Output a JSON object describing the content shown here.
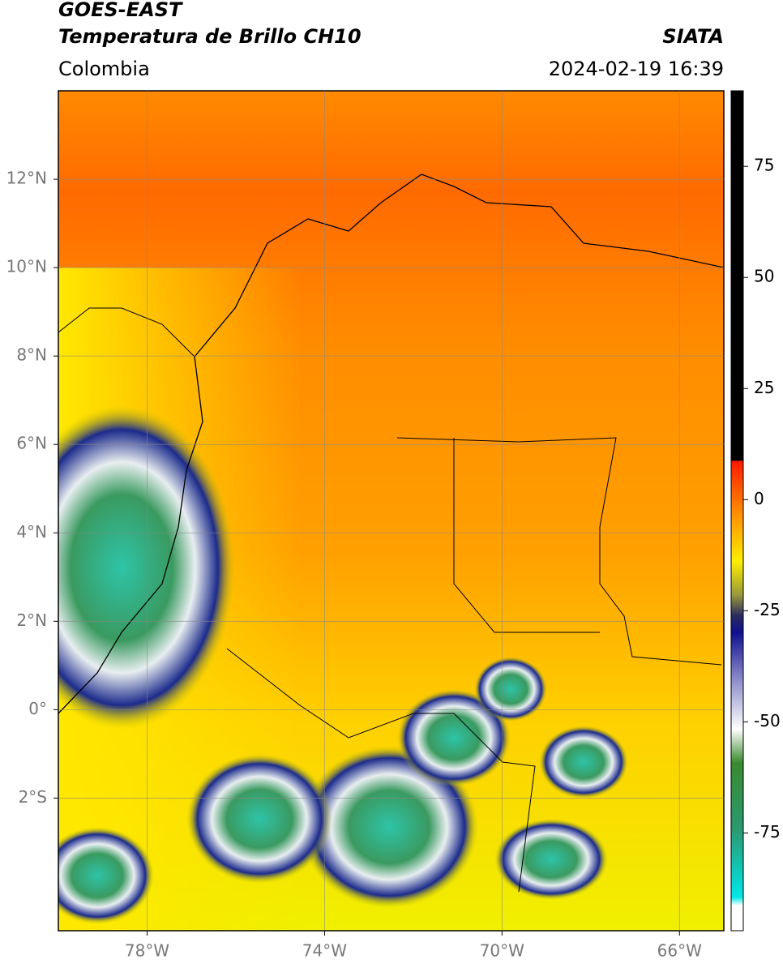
{
  "header": {
    "satellite": "GOES-EAST",
    "product": "Temperatura de Brillo CH10",
    "agency": "SIATA",
    "region": "Colombia",
    "datetime": "2024-02-19 16:39"
  },
  "map": {
    "xlim": [
      -80,
      -65
    ],
    "ylim": [
      -5,
      14
    ],
    "xticks": [
      {
        "value": -78,
        "label": "78°W"
      },
      {
        "value": -74,
        "label": "74°W"
      },
      {
        "value": -70,
        "label": "70°W"
      },
      {
        "value": -66,
        "label": "66°W"
      }
    ],
    "yticks": [
      {
        "value": 12,
        "label": "12°N"
      },
      {
        "value": 10,
        "label": "10°N"
      },
      {
        "value": 8,
        "label": "8°N"
      },
      {
        "value": 6,
        "label": "6°N"
      },
      {
        "value": 4,
        "label": "4°N"
      },
      {
        "value": 2,
        "label": "2°N"
      },
      {
        "value": 0,
        "label": "0°"
      },
      {
        "value": -2,
        "label": "2°S"
      }
    ],
    "grid": true
  },
  "colorbar": {
    "lim": [
      -97,
      92
    ],
    "ticks": [
      75,
      50,
      25,
      0,
      -25,
      -50,
      -75
    ]
  }
}
